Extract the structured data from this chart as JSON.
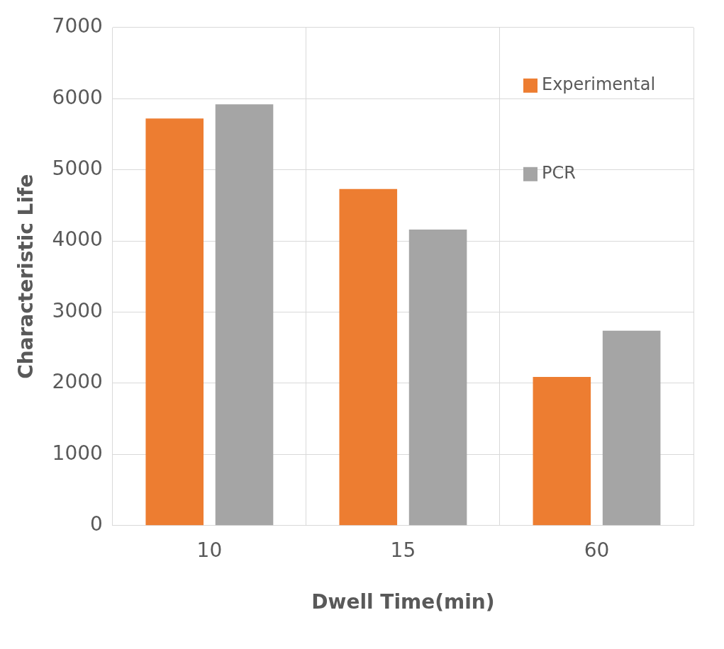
{
  "chart_data": {
    "type": "bar",
    "xlabel": "Dwell Time(min)",
    "ylabel": "Characteristic Life",
    "categories": [
      "10",
      "15",
      "60"
    ],
    "series": [
      {
        "name": "Experimental",
        "color": "#ed7d31",
        "values": [
          5720,
          4730,
          2090
        ]
      },
      {
        "name": "PCR",
        "color": "#a5a5a5",
        "values": [
          5920,
          4160,
          2740
        ]
      }
    ],
    "ylim": [
      0,
      7000
    ],
    "yticks": [
      0,
      1000,
      2000,
      3000,
      4000,
      5000,
      6000,
      7000
    ],
    "grid": true,
    "legend": "top right"
  }
}
